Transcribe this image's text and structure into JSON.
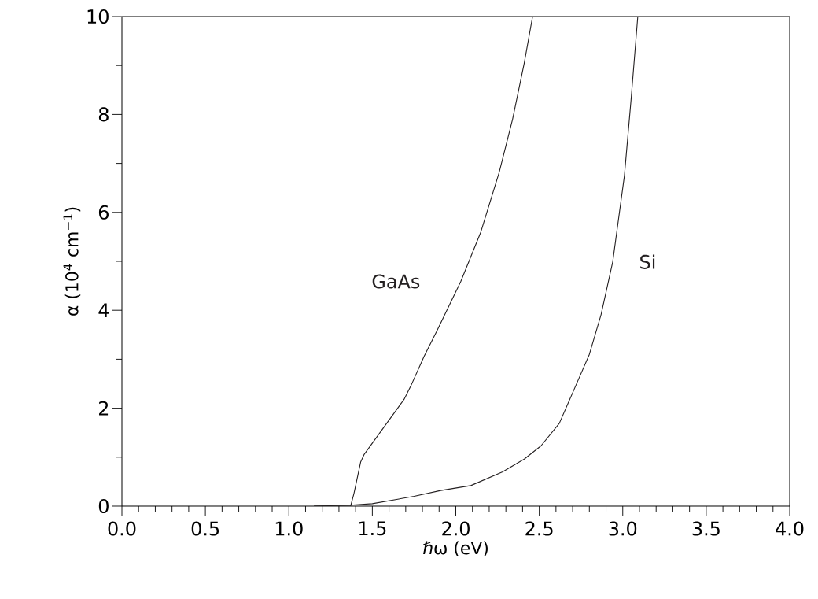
{
  "chart_data": {
    "type": "line",
    "xlabel": "ℏω (eV)",
    "ylabel": "α (10$^{4}$ cm$^{−1}$)",
    "xlim": [
      0,
      4
    ],
    "ylim": [
      0,
      10
    ],
    "xticks": [
      {
        "value": 0,
        "label": "0.0"
      },
      {
        "value": 0.5,
        "label": "0.5"
      },
      {
        "value": 1,
        "label": "1.0"
      },
      {
        "value": 1.5,
        "label": "1.5"
      },
      {
        "value": 2,
        "label": "2.0"
      },
      {
        "value": 2.5,
        "label": "2.5"
      },
      {
        "value": 3,
        "label": "3.0"
      },
      {
        "value": 3.5,
        "label": "3.5"
      },
      {
        "value": 4,
        "label": "4.0"
      }
    ],
    "yticks": [
      0,
      2,
      4,
      6,
      8,
      10
    ],
    "grid": false,
    "legend": false,
    "marker": "none",
    "line_style": "solid",
    "series": [
      {
        "name": "GaAs",
        "color": "#231f20",
        "x": [
          1.15,
          1.37,
          1.39,
          1.43,
          1.45,
          1.69,
          1.73,
          1.81,
          1.89,
          2.03,
          2.15,
          2.26,
          2.34,
          2.41,
          2.46
        ],
        "values": [
          0,
          0,
          0.26,
          0.9,
          1.05,
          2.18,
          2.45,
          3.06,
          3.6,
          4.59,
          5.6,
          6.82,
          7.9,
          9.05,
          10
        ]
      },
      {
        "name": "Si",
        "color": "#231f20",
        "x": [
          1.15,
          1.37,
          1.5,
          1.75,
          1.91,
          2.09,
          2.28,
          2.41,
          2.51,
          2.62,
          2.73,
          2.8,
          2.87,
          2.94,
          3.01,
          3.05,
          3.09
        ],
        "values": [
          0,
          0.02,
          0.05,
          0.2,
          0.32,
          0.42,
          0.7,
          0.96,
          1.23,
          1.69,
          2.55,
          3.1,
          3.91,
          4.99,
          6.75,
          8.31,
          10
        ]
      }
    ]
  }
}
